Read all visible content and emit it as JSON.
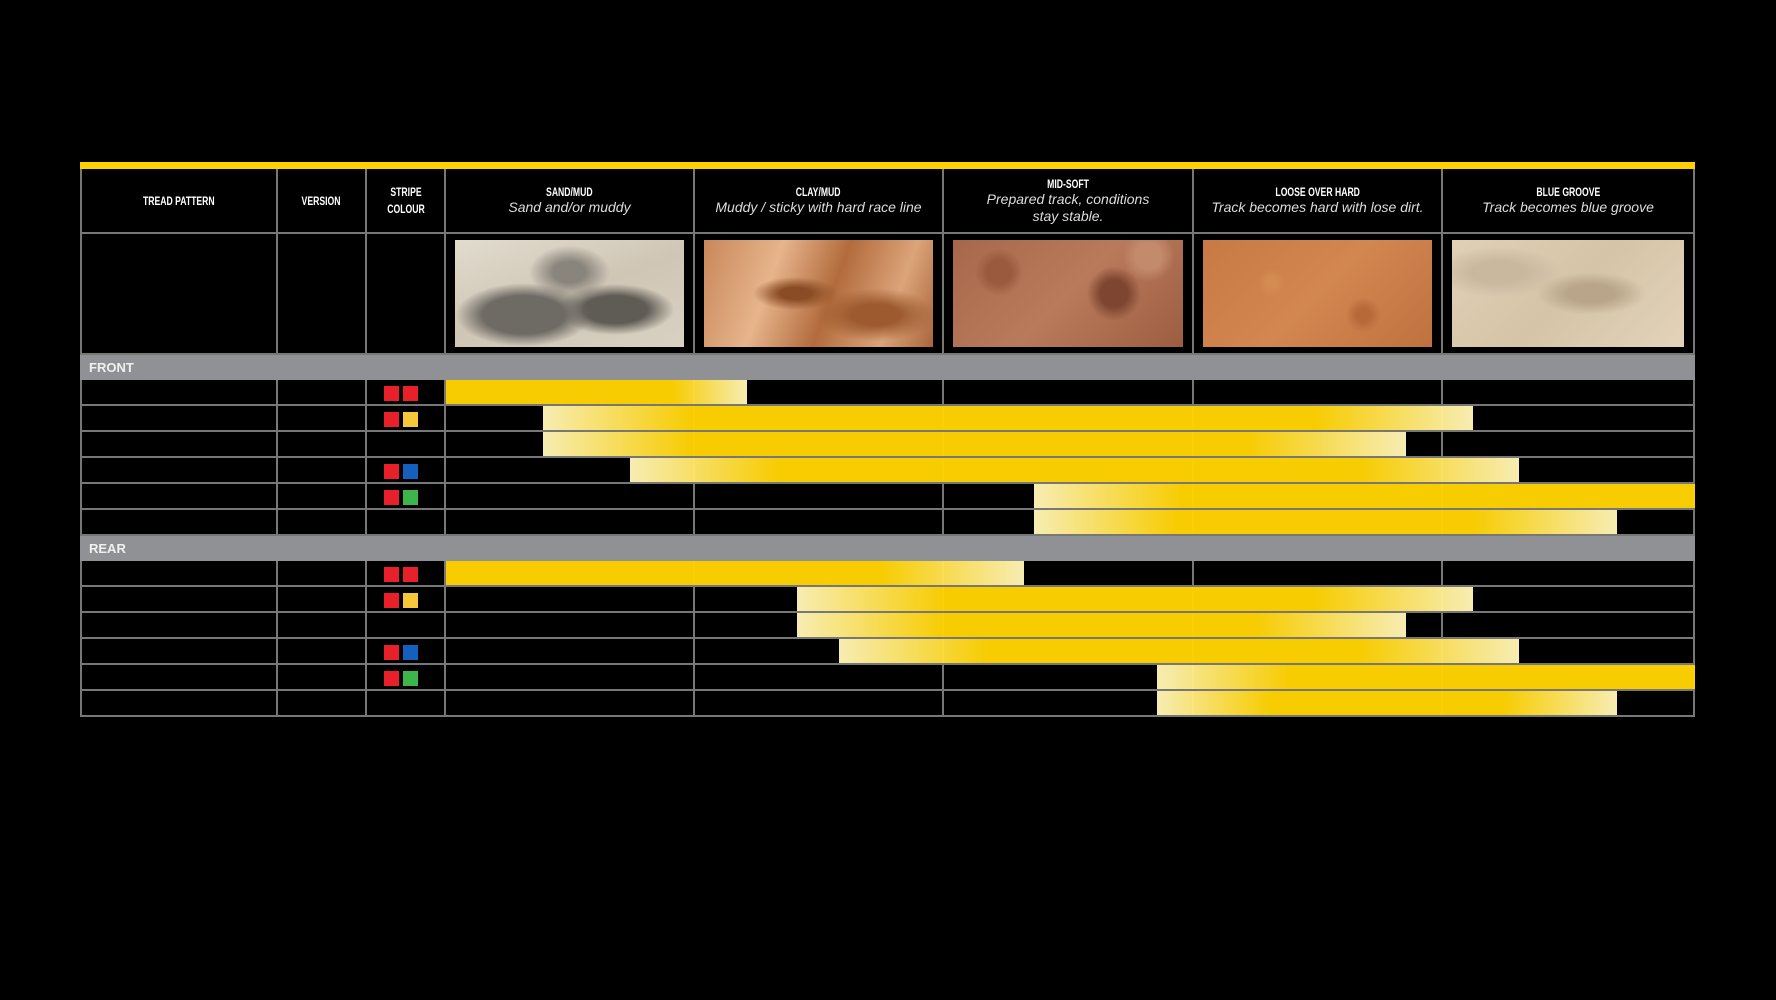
{
  "columns": [
    {
      "title": "TREAD PATTERN",
      "sub": ""
    },
    {
      "title": "VERSION",
      "sub": ""
    },
    {
      "title": "STRIPE COLOUR",
      "sub": ""
    },
    {
      "title": "SAND/MUD",
      "sub": "Sand and/or muddy"
    },
    {
      "title": "CLAY/MUD",
      "sub": "Muddy / sticky with hard race line"
    },
    {
      "title": "MID-SOFT",
      "sub": "Prepared track, conditions stay stable."
    },
    {
      "title": "LOOSE OVER HARD",
      "sub": "Track becomes hard with lose dirt."
    },
    {
      "title": "BLUE GROOVE",
      "sub": "Track becomes blue groove"
    }
  ],
  "colors": {
    "accent": "#ffd100",
    "bar": "#ffd200",
    "bar_fade": "#fff4b8",
    "red": "#e8202a",
    "yellow": "#f7c73a",
    "blue": "#1560bd",
    "green": "#3cb54a",
    "section": "#8f9194"
  },
  "sections": [
    {
      "label": "FRONT",
      "rows": [
        {
          "stripe": [
            "red",
            "red"
          ],
          "range": [
            0,
            1.21
          ]
        },
        {
          "stripe": [
            "red",
            "yellow"
          ],
          "range": [
            0.39,
            4.12
          ]
        },
        {
          "stripe": [],
          "range": [
            0.39,
            3.85
          ]
        },
        {
          "stripe": [
            "red",
            "blue"
          ],
          "range": [
            0.74,
            4.3
          ]
        },
        {
          "stripe": [
            "red",
            "green"
          ],
          "range": [
            2.36,
            5
          ]
        },
        {
          "stripe": [],
          "range": [
            2.36,
            4.69
          ]
        }
      ]
    },
    {
      "label": "REAR",
      "rows": [
        {
          "stripe": [
            "red",
            "red"
          ],
          "range": [
            0,
            2.32
          ]
        },
        {
          "stripe": [
            "red",
            "yellow"
          ],
          "range": [
            1.41,
            4.12
          ]
        },
        {
          "stripe": [],
          "range": [
            1.41,
            3.85
          ]
        },
        {
          "stripe": [
            "red",
            "blue"
          ],
          "range": [
            1.58,
            4.3
          ]
        },
        {
          "stripe": [
            "red",
            "green"
          ],
          "range": [
            2.85,
            5
          ]
        },
        {
          "stripe": [],
          "range": [
            2.85,
            4.69
          ]
        }
      ]
    }
  ]
}
